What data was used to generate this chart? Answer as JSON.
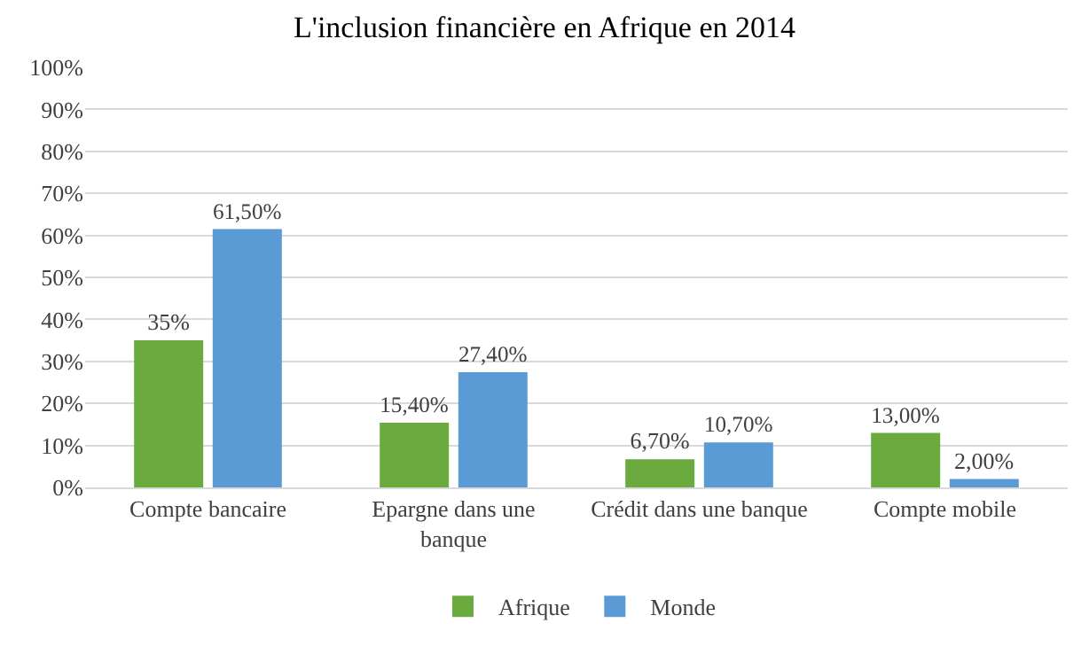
{
  "chart_data": {
    "type": "bar",
    "title": "L'inclusion financière en Afrique en 2014",
    "categories": [
      "Compte bancaire",
      "Epargne dans une banque",
      "Crédit dans une banque",
      "Compte mobile"
    ],
    "series": [
      {
        "name": "Afrique",
        "color": "#6aaa3e",
        "values": [
          35,
          15.4,
          6.7,
          13
        ],
        "value_labels": [
          "35%",
          "15,40%",
          "6,70%",
          "13,00%"
        ]
      },
      {
        "name": "Monde",
        "color": "#5b9bd5",
        "values": [
          61.5,
          27.4,
          10.7,
          2
        ],
        "value_labels": [
          "61,50%",
          "27,40%",
          "10,70%",
          "2,00%"
        ]
      }
    ],
    "ylim": [
      0,
      100
    ],
    "yticks": [
      {
        "value": 0,
        "label": "0%"
      },
      {
        "value": 10,
        "label": "10%"
      },
      {
        "value": 20,
        "label": "20%"
      },
      {
        "value": 30,
        "label": "30%"
      },
      {
        "value": 40,
        "label": "40%"
      },
      {
        "value": 50,
        "label": "50%"
      },
      {
        "value": 60,
        "label": "60%"
      },
      {
        "value": 70,
        "label": "70%"
      },
      {
        "value": 80,
        "label": "80%"
      },
      {
        "value": 90,
        "label": "90%"
      },
      {
        "value": 100,
        "label": "100%"
      }
    ],
    "grid": "y",
    "legend": "bottom"
  }
}
